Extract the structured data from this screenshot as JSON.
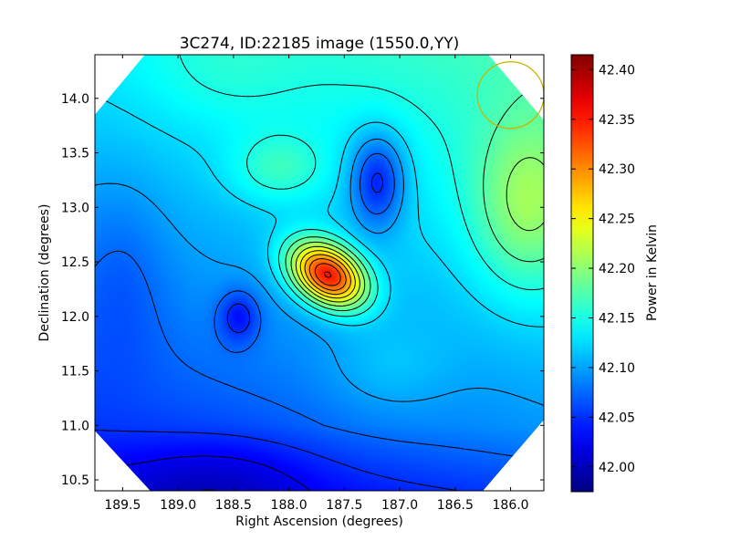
{
  "chart_data": {
    "type": "heatmap",
    "title": "3C274, ID:22185 image (1550.0,YY)",
    "xlabel": "Right Ascension (degrees)",
    "ylabel": "Declination (degrees)",
    "xlim": [
      189.75,
      185.7
    ],
    "ylim": [
      10.4,
      14.4
    ],
    "x_ticks": [
      189.5,
      189.0,
      188.5,
      188.0,
      187.5,
      187.0,
      186.5,
      186.0
    ],
    "x_tick_labels": [
      "189.5",
      "189.0",
      "188.5",
      "188.0",
      "187.5",
      "187.0",
      "186.5",
      "186.0"
    ],
    "y_ticks": [
      10.5,
      11.0,
      11.5,
      12.0,
      12.5,
      13.0,
      13.5,
      14.0
    ],
    "y_tick_labels": [
      "10.5",
      "11.0",
      "11.5",
      "12.0",
      "12.5",
      "13.0",
      "13.5",
      "14.0"
    ],
    "colorbar": {
      "label": "Power in Kelvin",
      "range": [
        41.975,
        42.415
      ],
      "ticks": [
        42.0,
        42.05,
        42.1,
        42.15,
        42.2,
        42.25,
        42.3,
        42.35,
        42.4
      ],
      "tick_labels": [
        "42.00",
        "42.05",
        "42.10",
        "42.15",
        "42.20",
        "42.25",
        "42.30",
        "42.35",
        "42.40"
      ],
      "colormap": "jet"
    },
    "features": [
      {
        "kind": "peak",
        "ra": 187.65,
        "dec": 12.38,
        "value": 42.41
      },
      {
        "kind": "local-minimum",
        "ra": 187.2,
        "dec": 13.2,
        "value": 42.06
      },
      {
        "kind": "local-minimum",
        "ra": 188.45,
        "dec": 12.0,
        "value": 42.07
      },
      {
        "kind": "local-minimum",
        "ra": 188.4,
        "dec": 10.5,
        "value": 41.98
      },
      {
        "kind": "local-maximum",
        "ra": 185.85,
        "dec": 13.0,
        "value": 42.22
      },
      {
        "kind": "local-maximum",
        "ra": 188.1,
        "dec": 13.3,
        "value": 42.19
      }
    ],
    "beam_marker": {
      "ra": 186.0,
      "dec": 14.03,
      "radius_deg": 0.3,
      "color": "#c8b400"
    },
    "contour_levels": [
      42.0,
      42.025,
      42.05,
      42.075,
      42.1,
      42.125,
      42.15,
      42.175,
      42.2,
      42.225,
      42.25,
      42.275,
      42.3,
      42.325,
      42.35,
      42.375,
      42.4
    ],
    "grid": false
  }
}
